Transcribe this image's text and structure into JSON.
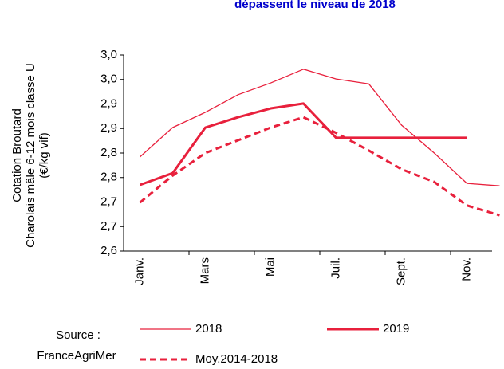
{
  "chart_data": {
    "type": "line",
    "title": "dépassent le niveau de 2018",
    "y_label": [
      "Cotation Broutard",
      "Charolais mâle 6-12 mois classe U",
      "(€/kg vif)"
    ],
    "source": [
      "Source :",
      "FranceAgriMer"
    ],
    "categories": [
      "Janv.",
      null,
      "Mars",
      null,
      "Mai",
      null,
      "Juil.",
      null,
      "Sept.",
      null,
      "Nov.",
      null
    ],
    "series": [
      {
        "name": "2018",
        "color": "#e8203c",
        "width": 1.3,
        "dashed": false,
        "values": [
          2.792,
          2.852,
          2.883,
          2.919,
          2.943,
          2.971,
          2.951,
          2.941,
          2.857,
          2.8,
          2.738,
          2.733
        ]
      },
      {
        "name": "2019",
        "color": "#e8203c",
        "width": 3,
        "dashed": false,
        "values": [
          2.735,
          2.759,
          2.852,
          2.873,
          2.891,
          2.901,
          2.831,
          2.831,
          2.831,
          2.831,
          2.831,
          null
        ]
      },
      {
        "name": "Moy.2014-2018",
        "color": "#e8203c",
        "width": 3,
        "dashed": true,
        "values": [
          2.699,
          2.754,
          2.8,
          2.826,
          2.852,
          2.873,
          2.841,
          2.805,
          2.767,
          2.741,
          2.693,
          2.673
        ]
      }
    ],
    "ylim": [
      2.6,
      3.0
    ],
    "yticks": [
      {
        "value": 2.6,
        "label": "2,6"
      },
      {
        "value": 2.65,
        "label": "2,7"
      },
      {
        "value": 2.7,
        "label": "2,7"
      },
      {
        "value": 2.75,
        "label": "2,8"
      },
      {
        "value": 2.8,
        "label": "2,8"
      },
      {
        "value": 2.85,
        "label": "2,9"
      },
      {
        "value": 2.9,
        "label": "2,9"
      },
      {
        "value": 2.95,
        "label": "3,0"
      },
      {
        "value": 3.0,
        "label": "3,0"
      }
    ],
    "grid": false
  }
}
